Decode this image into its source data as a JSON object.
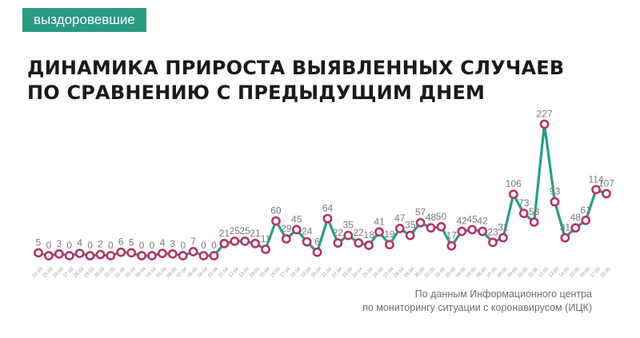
{
  "header": {
    "tag": "выздоровевшие",
    "title_line1": "ДИНАМИКА ПРИРОСТА ВЫЯВЛЕННЫХ СЛУЧАЕВ",
    "title_line2": "ПО СРАВНЕНИЮ С ПРЕДЫДУЩИМ ДНЕМ"
  },
  "source": {
    "line1": "По данным Информационного центра",
    "line2": "по мониторингу ситуации с коронавирусом (ИЦК)"
  },
  "colors": {
    "tag_bg": "#2b9a82",
    "line": "#2a9d86",
    "marker": "#b5336a",
    "value_label": "#7a7a7a",
    "date_label": "#9a9a9a"
  },
  "chart_data": {
    "type": "line",
    "title": "ДИНАМИКА ПРИРОСТА ВЫЯВЛЕННЫХ СЛУЧАЕВ ПО СРАВНЕНИЮ С ПРЕДЫДУЩИМ ДНЕМ",
    "xlabel": "",
    "ylabel": "",
    "ylim": [
      0,
      230
    ],
    "grid": false,
    "legend": "none",
    "categories": [
      "24.03",
      "25.03",
      "26.03",
      "27.03",
      "28.03",
      "29.03",
      "30.03",
      "31.03",
      "01.04",
      "02.04",
      "03.04",
      "04.04",
      "05.04",
      "06.04",
      "07.04",
      "08.04",
      "09.04",
      "10.04",
      "11.04",
      "12.04",
      "13.04",
      "14.04",
      "15.04",
      "16.04",
      "17.04",
      "18.04",
      "19.04",
      "20.04",
      "21.04",
      "22.04",
      "23.04",
      "24.04",
      "25.04",
      "26.04",
      "27.04",
      "28.04",
      "29.04",
      "30.04",
      "01.05",
      "02.05",
      "03.05",
      "04.05",
      "05.05",
      "06.05",
      "07.05",
      "08.05",
      "09.05",
      "10.05",
      "11.05",
      "12.05",
      "13.05",
      "14.05",
      "15.05",
      "16.05",
      "17.05",
      "18.05"
    ],
    "series": [
      {
        "values": [
          5,
          0,
          3,
          0,
          4,
          0,
          2,
          0,
          6,
          5,
          0,
          0,
          4,
          3,
          0,
          7,
          0,
          0,
          21,
          25,
          25,
          21,
          11,
          60,
          29,
          45,
          24,
          6,
          64,
          22,
          35,
          22,
          18,
          41,
          19,
          47,
          35,
          57,
          48,
          50,
          17,
          42,
          45,
          42,
          23,
          31,
          106,
          73,
          58,
          227,
          93,
          31,
          48,
          61,
          114,
          107
        ]
      }
    ]
  }
}
